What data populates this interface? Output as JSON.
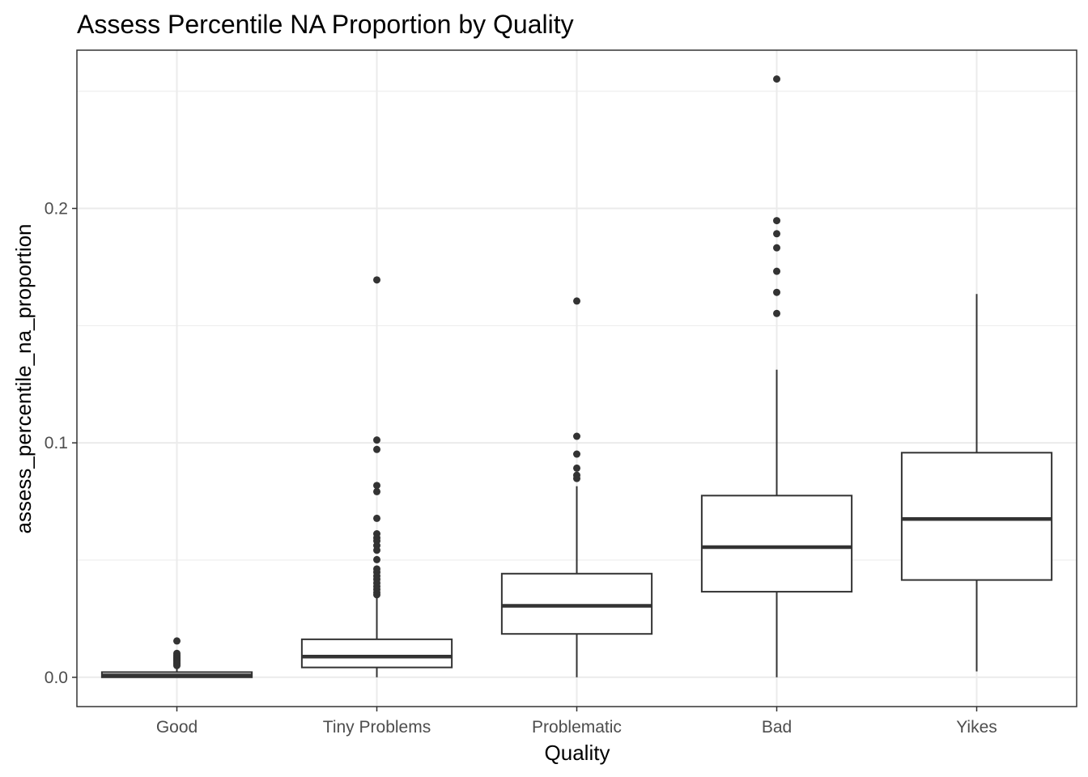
{
  "chart_data": {
    "type": "boxplot",
    "title": "Assess Percentile NA Proportion by Quality",
    "xlabel": "Quality",
    "ylabel": "assess_percentile_na_proportion",
    "categories": [
      "Good",
      "Tiny Problems",
      "Problematic",
      "Bad",
      "Yikes"
    ],
    "yticks": [
      0.0,
      0.1,
      0.2
    ],
    "ytick_labels": [
      "0.0",
      "0.1",
      "0.2"
    ],
    "ylim": [
      -0.0125,
      0.2675
    ],
    "grid": true,
    "legend": "none",
    "colors": {
      "box_line": "#333333",
      "outlier": "#333333",
      "grid": "#ebebeb",
      "panel_border": "#333333"
    },
    "boxes": [
      {
        "category": "Good",
        "lower_whisker": 0.0,
        "q1": 0.0,
        "median": 0.0008,
        "q3": 0.0022,
        "upper_whisker": 0.0045,
        "outliers": [
          0.0155,
          0.0102,
          0.0095,
          0.009,
          0.0085,
          0.008,
          0.0075,
          0.007,
          0.0065,
          0.006,
          0.0055,
          0.005
        ]
      },
      {
        "category": "Tiny Problems",
        "lower_whisker": 0.0,
        "q1": 0.0042,
        "median": 0.0088,
        "q3": 0.0162,
        "upper_whisker": 0.0342,
        "outliers": [
          0.1695,
          0.1012,
          0.0972,
          0.0818,
          0.0792,
          0.0678,
          0.0612,
          0.0595,
          0.0582,
          0.0562,
          0.0542,
          0.0502,
          0.0462,
          0.0448,
          0.0432,
          0.0418,
          0.0402,
          0.0388,
          0.0375,
          0.0362,
          0.0352
        ]
      },
      {
        "category": "Problematic",
        "lower_whisker": 0.0,
        "q1": 0.0185,
        "median": 0.0305,
        "q3": 0.0442,
        "upper_whisker": 0.0815,
        "outliers": [
          0.1605,
          0.1028,
          0.0952,
          0.0892,
          0.0862,
          0.0848
        ]
      },
      {
        "category": "Bad",
        "lower_whisker": 0.0,
        "q1": 0.0365,
        "median": 0.0555,
        "q3": 0.0775,
        "upper_whisker": 0.1312,
        "outliers": [
          0.2552,
          0.1948,
          0.1892,
          0.1832,
          0.1732,
          0.1642,
          0.1552
        ]
      },
      {
        "category": "Yikes",
        "lower_whisker": 0.0025,
        "q1": 0.0415,
        "median": 0.0675,
        "q3": 0.0958,
        "upper_whisker": 0.1635,
        "outliers": []
      }
    ]
  }
}
